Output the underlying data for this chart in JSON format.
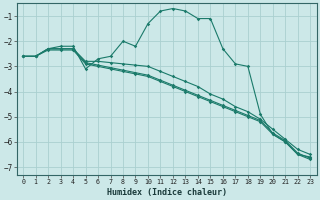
{
  "xlabel": "Humidex (Indice chaleur)",
  "ylabel": "",
  "bg_color": "#cce8e8",
  "grid_color": "#aad0d0",
  "line_color": "#1a7a6a",
  "xlim": [
    -0.5,
    23.5
  ],
  "ylim": [
    -7.3,
    -0.5
  ],
  "yticks": [
    -7,
    -6,
    -5,
    -4,
    -3,
    -2,
    -1
  ],
  "xticks": [
    0,
    1,
    2,
    3,
    4,
    5,
    6,
    7,
    8,
    9,
    10,
    11,
    12,
    13,
    14,
    15,
    16,
    17,
    18,
    19,
    20,
    21,
    22,
    23
  ],
  "series": [
    {
      "x": [
        0,
        1,
        2,
        3,
        4,
        5,
        6,
        7,
        8,
        9,
        10,
        11,
        12,
        13,
        14,
        15,
        16,
        17,
        18,
        19,
        20,
        21,
        22,
        23
      ],
      "y": [
        -2.6,
        -2.6,
        -2.3,
        -2.2,
        -2.2,
        -3.1,
        -2.7,
        -2.6,
        -2.0,
        -2.2,
        -1.3,
        -0.8,
        -0.7,
        -0.8,
        -1.1,
        -1.1,
        -2.3,
        -2.9,
        -3.0,
        -4.9,
        -5.7,
        -6.0,
        -6.5,
        -6.6
      ]
    },
    {
      "x": [
        0,
        1,
        2,
        3,
        4,
        5,
        6,
        7,
        8,
        9,
        10,
        11,
        12,
        13,
        14,
        15,
        16,
        17,
        18,
        19,
        20,
        21,
        22,
        23
      ],
      "y": [
        -2.6,
        -2.6,
        -2.3,
        -2.3,
        -2.3,
        -2.8,
        -2.8,
        -2.85,
        -2.9,
        -2.95,
        -3.0,
        -3.2,
        -3.4,
        -3.6,
        -3.8,
        -4.1,
        -4.3,
        -4.6,
        -4.8,
        -5.1,
        -5.5,
        -5.9,
        -6.3,
        -6.5
      ]
    },
    {
      "x": [
        0,
        1,
        2,
        3,
        4,
        5,
        6,
        7,
        8,
        9,
        10,
        11,
        12,
        13,
        14,
        15,
        16,
        17,
        18,
        19,
        20,
        21,
        22,
        23
      ],
      "y": [
        -2.6,
        -2.6,
        -2.3,
        -2.3,
        -2.3,
        -2.85,
        -2.95,
        -3.05,
        -3.15,
        -3.25,
        -3.35,
        -3.55,
        -3.75,
        -3.95,
        -4.15,
        -4.35,
        -4.55,
        -4.75,
        -4.95,
        -5.15,
        -5.65,
        -5.95,
        -6.45,
        -6.65
      ]
    },
    {
      "x": [
        0,
        1,
        2,
        3,
        4,
        5,
        6,
        7,
        8,
        9,
        10,
        11,
        12,
        13,
        14,
        15,
        16,
        17,
        18,
        19,
        20,
        21,
        22,
        23
      ],
      "y": [
        -2.6,
        -2.6,
        -2.35,
        -2.35,
        -2.35,
        -2.9,
        -3.0,
        -3.1,
        -3.2,
        -3.3,
        -3.4,
        -3.6,
        -3.8,
        -4.0,
        -4.2,
        -4.4,
        -4.6,
        -4.8,
        -5.0,
        -5.2,
        -5.7,
        -6.0,
        -6.5,
        -6.7
      ]
    }
  ]
}
